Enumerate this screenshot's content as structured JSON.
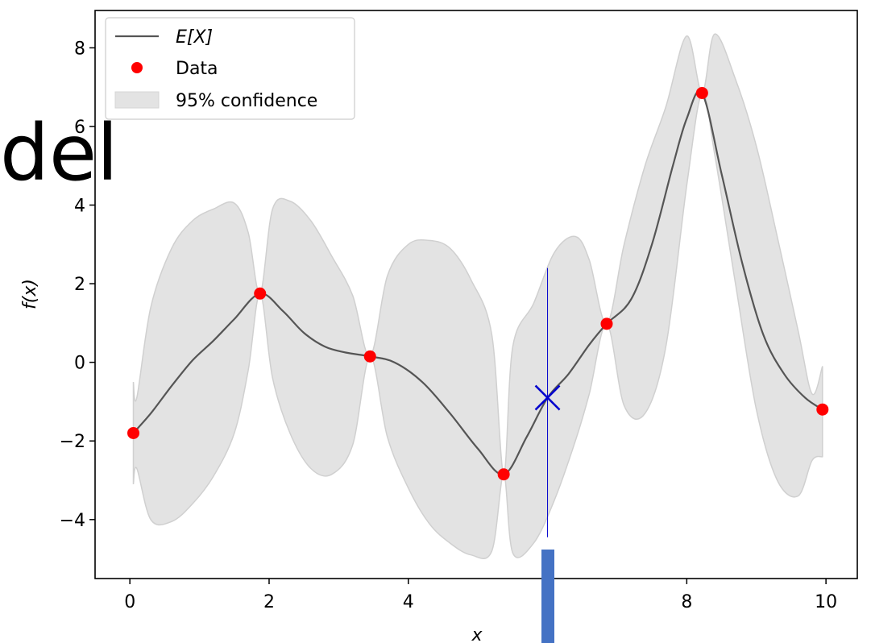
{
  "overlay_text": "del",
  "chart_data": {
    "type": "line",
    "xlabel": "x",
    "ylabel": "f(x)",
    "xlim": [
      -0.5,
      10.45
    ],
    "ylim": [
      -5.5,
      8.95
    ],
    "xticks": [
      0,
      2,
      4,
      6,
      8,
      10
    ],
    "xtick_labels": [
      "0",
      "2",
      "4",
      "",
      "8",
      "10"
    ],
    "yticks": [
      -4,
      -2,
      0,
      2,
      4,
      6,
      8
    ],
    "ytick_labels": [
      "−4",
      "−2",
      "0",
      "2",
      "4",
      "6",
      "8"
    ],
    "legend": {
      "position": "top-left",
      "entries": [
        {
          "label": "E[X]",
          "kind": "line",
          "color": "#555555"
        },
        {
          "label": "Data",
          "kind": "marker",
          "color": "#ff0000"
        },
        {
          "label": "95% confidence",
          "kind": "patch",
          "color": "#e3e3e3"
        }
      ]
    },
    "data_points": {
      "name": "Data",
      "x": [
        0.05,
        1.87,
        3.45,
        5.37,
        6.85,
        8.22,
        9.95
      ],
      "y": [
        -1.8,
        1.75,
        0.15,
        -2.85,
        0.98,
        6.85,
        -1.2
      ]
    },
    "mean_curve": {
      "name": "E[X]",
      "x": [
        0.05,
        0.3,
        0.6,
        0.9,
        1.2,
        1.5,
        1.87,
        2.2,
        2.5,
        2.8,
        3.1,
        3.45,
        3.8,
        4.2,
        4.6,
        5.0,
        5.37,
        5.7,
        6.0,
        6.3,
        6.6,
        6.85,
        7.2,
        7.5,
        7.8,
        8.0,
        8.22,
        8.5,
        8.8,
        9.1,
        9.4,
        9.7,
        9.95
      ],
      "y": [
        -1.8,
        -1.3,
        -0.6,
        0.05,
        0.55,
        1.1,
        1.75,
        1.3,
        0.75,
        0.4,
        0.25,
        0.15,
        0.0,
        -0.5,
        -1.3,
        -2.2,
        -2.85,
        -1.9,
        -0.9,
        -0.3,
        0.45,
        0.98,
        1.6,
        3.0,
        5.0,
        6.2,
        6.85,
        4.8,
        2.5,
        0.7,
        -0.3,
        -0.9,
        -1.2
      ]
    },
    "confidence_band": {
      "name": "95% confidence",
      "x": [
        0.05,
        0.1,
        0.3,
        0.6,
        0.9,
        1.2,
        1.5,
        1.7,
        1.87,
        2.05,
        2.3,
        2.6,
        2.9,
        3.2,
        3.45,
        3.7,
        4.0,
        4.3,
        4.6,
        4.9,
        5.2,
        5.37,
        5.5,
        5.8,
        6.1,
        6.4,
        6.6,
        6.85,
        7.1,
        7.4,
        7.7,
        8.0,
        8.22,
        8.4,
        8.7,
        9.0,
        9.3,
        9.6,
        9.8,
        9.95
      ],
      "upper": [
        -0.5,
        -0.9,
        1.4,
        2.9,
        3.6,
        3.9,
        4.05,
        3.3,
        1.75,
        3.9,
        4.1,
        3.6,
        2.7,
        1.7,
        0.15,
        2.2,
        3.0,
        3.1,
        2.9,
        2.1,
        0.7,
        -2.85,
        0.4,
        1.5,
        2.8,
        3.2,
        2.6,
        0.98,
        3.0,
        5.0,
        6.5,
        8.3,
        6.85,
        8.35,
        7.2,
        5.5,
        3.2,
        0.8,
        -0.8,
        -0.1
      ],
      "lower": [
        -3.1,
        -2.7,
        -4.0,
        -4.05,
        -3.6,
        -2.9,
        -1.8,
        -0.2,
        1.75,
        -0.4,
        -1.8,
        -2.7,
        -2.85,
        -2.1,
        0.15,
        -1.9,
        -3.2,
        -4.1,
        -4.6,
        -4.9,
        -4.8,
        -2.85,
        -4.85,
        -4.6,
        -3.5,
        -2.0,
        -0.8,
        0.98,
        -1.1,
        -1.3,
        0.4,
        4.5,
        6.85,
        5.3,
        2.0,
        -1.2,
        -3.0,
        -3.4,
        -2.5,
        -2.4
      ]
    },
    "query_marker": {
      "x": 6.0,
      "y": -0.9,
      "shape": "x",
      "color": "#0000cd"
    },
    "query_line": {
      "x": 6.0,
      "y_top": 2.4,
      "y_bottom": -4.45,
      "color": "#0000cd"
    }
  }
}
